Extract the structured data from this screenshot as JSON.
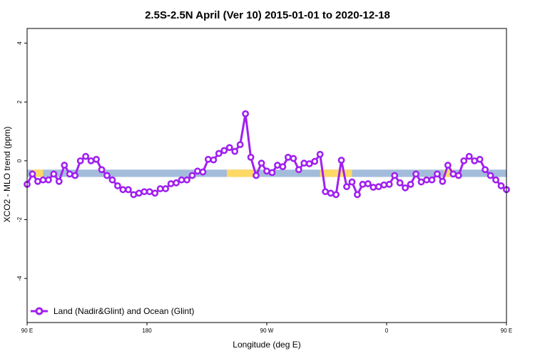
{
  "chart_data": {
    "type": "line",
    "title": "2.5S-2.5N April (Ver 10)   2015-01-01 to 2020-12-18",
    "xlabel": "Longitude (deg E)",
    "ylabel": "XCO2 - MLO trend (ppm)",
    "xlim": [
      90,
      450
    ],
    "ylim": [
      -5.5,
      4.5
    ],
    "x_ticks": [
      {
        "value": 90,
        "label": "90 E"
      },
      {
        "value": 180,
        "label": "180"
      },
      {
        "value": 270,
        "label": "90 W"
      },
      {
        "value": 360,
        "label": "0"
      },
      {
        "value": 450,
        "label": "90 E"
      },
      {
        "value": 540,
        "label": "180"
      }
    ],
    "y_ticks": [
      {
        "value": -4,
        "label": "-4"
      },
      {
        "value": -2,
        "label": "-2"
      },
      {
        "value": 0,
        "label": "0"
      },
      {
        "value": 2,
        "label": "2"
      },
      {
        "value": 4,
        "label": "4"
      }
    ],
    "legend": {
      "placement": "bottom-left",
      "label": "Land (Nadir&Glint) and Ocean (Glint)"
    },
    "colors": {
      "series": "#a020f0",
      "land_band": "#ffd966",
      "ocean_band": "#a4bcdc"
    },
    "surface_band": {
      "y_range": [
        -0.55,
        -0.3
      ],
      "land_segments": [
        [
          94,
          102
        ],
        [
          240,
          262
        ],
        [
          310,
          334
        ],
        [
          403,
          410
        ]
      ]
    },
    "series": [
      {
        "name": "Land (Nadir&Glint) and Ocean (Glint)",
        "x": [
          90,
          94,
          98,
          102,
          106,
          110,
          114,
          118,
          122,
          126,
          130,
          134,
          138,
          142,
          146,
          150,
          154,
          158,
          162,
          166,
          170,
          174,
          178,
          182,
          186,
          190,
          194,
          198,
          202,
          206,
          210,
          214,
          218,
          222,
          226,
          230,
          234,
          238,
          242,
          246,
          250,
          254,
          258,
          262,
          266,
          270,
          274,
          278,
          282,
          286,
          290,
          294,
          298,
          302,
          306,
          310,
          314,
          318,
          322,
          326,
          330,
          334,
          338,
          342,
          346,
          350,
          354,
          358,
          362,
          366,
          370,
          374,
          378,
          382,
          386,
          390,
          394,
          398,
          402,
          406,
          410,
          414,
          418,
          422,
          426,
          430,
          434,
          438,
          442,
          446,
          450
        ],
        "y": [
          -0.8,
          -0.45,
          -0.7,
          -0.65,
          -0.65,
          -0.45,
          -0.7,
          -0.15,
          -0.45,
          -0.5,
          0.0,
          0.15,
          0.0,
          0.05,
          -0.3,
          -0.5,
          -0.65,
          -0.85,
          -0.98,
          -0.98,
          -1.15,
          -1.1,
          -1.05,
          -1.05,
          -1.1,
          -0.95,
          -0.95,
          -0.78,
          -0.75,
          -0.65,
          -0.65,
          -0.5,
          -0.35,
          -0.38,
          0.05,
          0.03,
          0.25,
          0.35,
          0.45,
          0.32,
          0.55,
          1.6,
          0.12,
          -0.5,
          -0.08,
          -0.35,
          -0.4,
          -0.15,
          -0.2,
          0.12,
          0.08,
          -0.3,
          -0.08,
          -0.1,
          -0.02,
          0.22,
          -1.05,
          -1.1,
          -1.15,
          0.02,
          -0.88,
          -0.72,
          -1.15,
          -0.8,
          -0.78,
          -0.9,
          -0.88,
          -0.82,
          -0.8,
          -0.5,
          -0.75,
          -0.92,
          -0.8,
          -0.45,
          -0.72,
          -0.65,
          -0.65,
          -0.45,
          -0.7,
          -0.15,
          -0.45,
          -0.5,
          0.0,
          0.15,
          0.0,
          0.05,
          -0.3,
          -0.5,
          -0.65,
          -0.85,
          -0.98
        ]
      }
    ]
  }
}
